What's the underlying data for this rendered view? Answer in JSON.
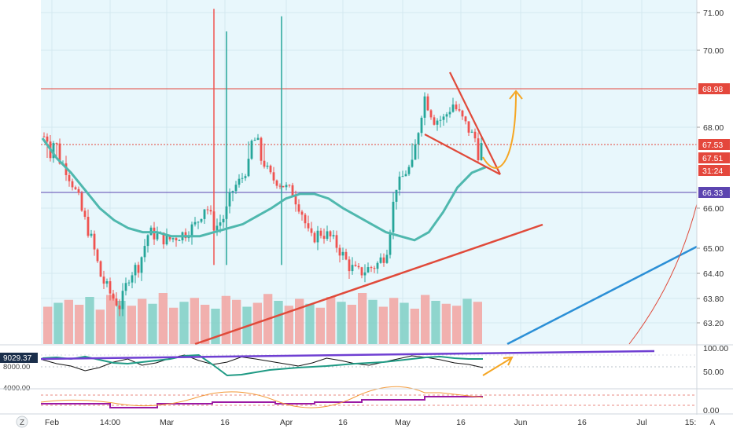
{
  "chart_data": {
    "type": "candlestick",
    "price_axis": {
      "ticks": [
        "71.00",
        "70.00",
        "68.00",
        "66.00",
        "65.00",
        "64.40",
        "63.80",
        "63.20"
      ],
      "ylim": [
        62.8,
        71.3
      ]
    },
    "price_labels": [
      {
        "text": "68.98",
        "value": 68.98,
        "color": "#e4473c"
      },
      {
        "text": "67.53",
        "value": 67.53,
        "color": "#e4473c"
      },
      {
        "text": "67.51",
        "value": 67.51,
        "color": "#e4473c"
      },
      {
        "text": "31:24",
        "value": 67.3,
        "color": "#e4473c"
      },
      {
        "text": "66.33",
        "value": 66.33,
        "color": "#5c45b0"
      }
    ],
    "horizontal_levels": [
      {
        "value": 68.98,
        "color": "#e4473c",
        "style": "solid"
      },
      {
        "value": 67.53,
        "color": "#e4473c",
        "style": "dotted"
      },
      {
        "value": 66.33,
        "color": "#5c45b0",
        "style": "solid"
      }
    ],
    "time_axis": {
      "ticks": [
        "Feb",
        "14:00",
        "Mar",
        "16",
        "Apr",
        "16",
        "May",
        "16",
        "Jun",
        "16",
        "Jul",
        "15:"
      ]
    },
    "close_series": [
      67.75,
      67.6,
      67.3,
      66.6,
      65.9,
      65.2,
      64.3,
      63.9,
      63.6,
      64.4,
      64.6,
      65.4,
      65.3,
      65.2,
      65.3,
      65.4,
      65.6,
      66.1,
      65.5,
      65.8,
      66.5,
      66.9,
      67.7,
      67.4,
      66.8,
      66.6,
      66.4,
      66.0,
      65.2,
      65.4,
      65.3,
      65.0,
      64.6,
      64.4,
      64.5,
      64.6,
      64.9,
      66.5,
      67.0,
      67.4,
      68.8,
      68.2,
      68.2,
      68.6,
      68.2,
      67.8,
      67.5
    ],
    "moving_average": [
      67.7,
      67.5,
      67.0,
      66.4,
      66.0,
      65.7,
      65.5,
      65.4,
      65.4,
      65.3,
      65.3,
      65.3,
      65.4,
      65.5,
      65.6,
      65.8,
      66.0,
      66.2,
      66.3,
      66.3,
      66.2,
      66.0,
      65.8,
      65.6,
      65.4,
      65.3,
      65.2,
      65.4,
      65.9,
      66.5,
      67.0,
      67.2
    ],
    "volume": [
      38,
      42,
      45,
      40,
      48,
      35,
      50,
      44,
      39,
      46,
      41,
      52,
      37,
      43,
      47,
      40,
      36,
      49,
      45,
      38,
      42,
      51,
      44,
      39,
      46,
      41,
      37,
      48,
      43,
      40,
      52,
      45,
      38,
      47,
      42,
      36,
      50,
      44,
      41,
      39,
      46,
      43
    ],
    "oscillator": {
      "labels": [
        "9029.37",
        "8000.00",
        "4000.00"
      ],
      "ticks": [
        "100.00",
        "50.00",
        "0.00"
      ],
      "black_series": [
        68,
        58,
        52,
        40,
        48,
        62,
        70,
        54,
        60,
        72,
        80,
        66,
        56,
        62,
        75,
        70,
        64,
        58,
        52,
        60,
        72,
        66,
        58,
        54,
        62,
        70,
        78,
        74,
        68,
        60,
        56,
        48
      ],
      "teal_series": [
        72,
        74,
        70,
        76,
        68,
        60,
        58,
        62,
        66,
        70,
        78,
        80,
        55,
        28,
        30,
        36,
        42,
        45,
        48,
        50,
        52,
        55,
        58,
        60,
        62,
        66,
        70,
        74,
        76,
        72,
        70,
        70
      ]
    },
    "scale_markers": [
      "Z",
      "A"
    ]
  }
}
